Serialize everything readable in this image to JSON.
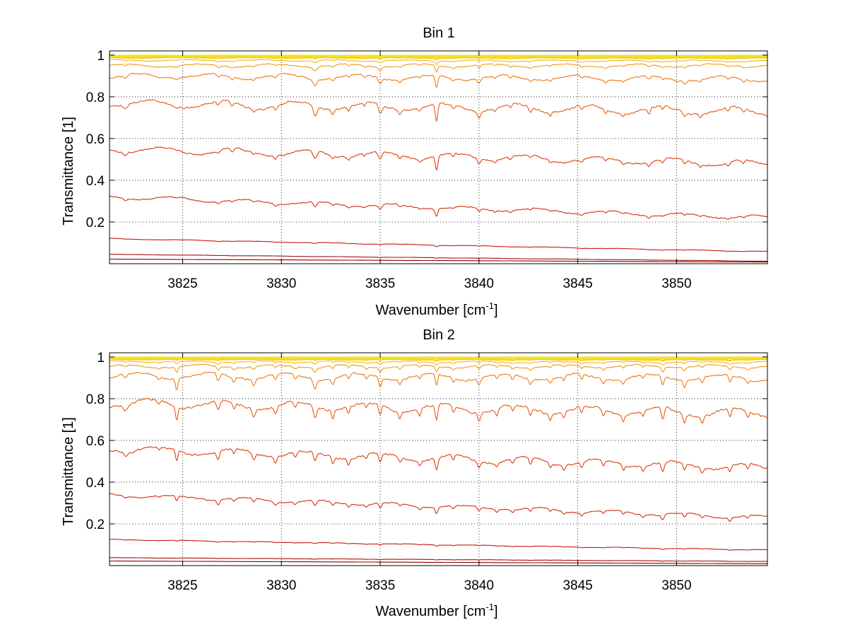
{
  "chart_data": [
    {
      "type": "line",
      "title": "Bin 1",
      "xlabel": "Wavenumber [cm",
      "xlabel_sup": "-1",
      "xlabel_end": "]",
      "ylabel": "Transmittance [1]",
      "xlim": [
        3821.3,
        3854.6
      ],
      "ylim": [
        0.0,
        1.02
      ],
      "xticks": [
        3825,
        3830,
        3835,
        3840,
        3845,
        3850
      ],
      "yticks": [
        0.2,
        0.4,
        0.6,
        0.8,
        1
      ],
      "ytick_labels": [
        "0.2",
        "0.4",
        "0.6",
        "0.8",
        "1"
      ],
      "grid": true,
      "legend": "none",
      "dips": [
        {
          "x": 3822.1,
          "w": 0.12,
          "s": 0.5
        },
        {
          "x": 3824.7,
          "w": 0.09,
          "s": 0.25
        },
        {
          "x": 3826.8,
          "w": 0.12,
          "s": 0.5
        },
        {
          "x": 3827.5,
          "w": 0.09,
          "s": 0.4
        },
        {
          "x": 3828.6,
          "w": 0.09,
          "s": 0.4
        },
        {
          "x": 3829.7,
          "w": 0.1,
          "s": 0.45
        },
        {
          "x": 3831.7,
          "w": 0.13,
          "s": 1.2
        },
        {
          "x": 3832.6,
          "w": 0.1,
          "s": 0.5
        },
        {
          "x": 3833.4,
          "w": 0.09,
          "s": 0.45
        },
        {
          "x": 3834.2,
          "w": 0.09,
          "s": 0.4
        },
        {
          "x": 3835.0,
          "w": 0.12,
          "s": 1.0
        },
        {
          "x": 3836.0,
          "w": 0.1,
          "s": 0.45
        },
        {
          "x": 3837.0,
          "w": 0.09,
          "s": 0.4
        },
        {
          "x": 3837.85,
          "w": 0.09,
          "s": 2.0
        },
        {
          "x": 3838.7,
          "w": 0.09,
          "s": 0.45
        },
        {
          "x": 3840.0,
          "w": 0.1,
          "s": 0.8
        },
        {
          "x": 3840.8,
          "w": 0.09,
          "s": 0.45
        },
        {
          "x": 3841.6,
          "w": 0.09,
          "s": 0.4
        },
        {
          "x": 3842.6,
          "w": 0.09,
          "s": 0.4
        },
        {
          "x": 3843.6,
          "w": 0.09,
          "s": 0.4
        },
        {
          "x": 3845.2,
          "w": 0.09,
          "s": 0.45
        },
        {
          "x": 3846.4,
          "w": 0.1,
          "s": 0.45
        },
        {
          "x": 3847.3,
          "w": 0.09,
          "s": 0.35
        },
        {
          "x": 3848.6,
          "w": 0.1,
          "s": 0.6
        },
        {
          "x": 3849.3,
          "w": 0.09,
          "s": 0.4
        },
        {
          "x": 3850.4,
          "w": 0.09,
          "s": 0.45
        },
        {
          "x": 3851.2,
          "w": 0.09,
          "s": 0.4
        },
        {
          "x": 3852.6,
          "w": 0.1,
          "s": 0.45
        },
        {
          "x": 3853.4,
          "w": 0.09,
          "s": 0.4
        }
      ],
      "series": [
        {
          "color": "#8b0000",
          "base_start": 0.022,
          "base_end": 0.008,
          "depth": 0.0
        },
        {
          "color": "#a50f0f",
          "base_start": 0.045,
          "base_end": 0.012,
          "depth": 0.002
        },
        {
          "color": "#c8180e",
          "base_start": 0.12,
          "base_end": 0.058,
          "depth": 0.006
        },
        {
          "color": "#d62d10",
          "base_start": 0.32,
          "base_end": 0.22,
          "depth": 0.035
        },
        {
          "color": "#dd3e10",
          "base_start": 0.55,
          "base_end": 0.48,
          "depth": 0.06
        },
        {
          "color": "#e65a12",
          "base_start": 0.77,
          "base_end": 0.73,
          "depth": 0.075
        },
        {
          "color": "#ec7a14",
          "base_start": 0.9,
          "base_end": 0.885,
          "depth": 0.05
        },
        {
          "color": "#f09a18",
          "base_start": 0.95,
          "base_end": 0.95,
          "depth": 0.03
        },
        {
          "color": "#f3b51c",
          "base_start": 0.975,
          "base_end": 0.972,
          "depth": 0.015
        },
        {
          "color": "#f5cc20",
          "base_start": 0.988,
          "base_end": 0.986,
          "depth": 0.006
        },
        {
          "color": "#f7dc22",
          "base_start": 0.994,
          "base_end": 0.993,
          "depth": 0.003
        },
        {
          "color": "#f0e61c",
          "base_start": 0.998,
          "base_end": 0.997,
          "depth": 0.001
        }
      ]
    },
    {
      "type": "line",
      "title": "Bin 2",
      "xlabel": "Wavenumber [cm",
      "xlabel_sup": "-1",
      "xlabel_end": "]",
      "ylabel": "Transmittance [1]",
      "xlim": [
        3821.3,
        3854.6
      ],
      "ylim": [
        0.0,
        1.02
      ],
      "xticks": [
        3825,
        3830,
        3835,
        3840,
        3845,
        3850
      ],
      "yticks": [
        0.2,
        0.4,
        0.6,
        0.8,
        1
      ],
      "ytick_labels": [
        "0.2",
        "0.4",
        "0.6",
        "0.8",
        "1"
      ],
      "grid": true,
      "legend": "none",
      "dips": [
        {
          "x": 3822.1,
          "w": 0.12,
          "s": 0.5
        },
        {
          "x": 3823.8,
          "w": 0.09,
          "s": 0.4
        },
        {
          "x": 3824.7,
          "w": 0.08,
          "s": 1.5
        },
        {
          "x": 3826.8,
          "w": 0.1,
          "s": 1.1
        },
        {
          "x": 3827.6,
          "w": 0.09,
          "s": 0.7
        },
        {
          "x": 3828.6,
          "w": 0.1,
          "s": 0.9
        },
        {
          "x": 3829.7,
          "w": 0.1,
          "s": 0.8
        },
        {
          "x": 3830.7,
          "w": 0.09,
          "s": 0.6
        },
        {
          "x": 3831.7,
          "w": 0.11,
          "s": 1.3
        },
        {
          "x": 3832.6,
          "w": 0.09,
          "s": 0.9
        },
        {
          "x": 3833.4,
          "w": 0.09,
          "s": 0.8
        },
        {
          "x": 3834.3,
          "w": 0.09,
          "s": 0.6
        },
        {
          "x": 3835.0,
          "w": 0.1,
          "s": 1.2
        },
        {
          "x": 3836.0,
          "w": 0.09,
          "s": 0.7
        },
        {
          "x": 3837.0,
          "w": 0.09,
          "s": 0.7
        },
        {
          "x": 3837.85,
          "w": 0.09,
          "s": 1.6
        },
        {
          "x": 3838.7,
          "w": 0.09,
          "s": 0.7
        },
        {
          "x": 3840.0,
          "w": 0.1,
          "s": 0.9
        },
        {
          "x": 3840.9,
          "w": 0.09,
          "s": 0.7
        },
        {
          "x": 3841.7,
          "w": 0.09,
          "s": 0.7
        },
        {
          "x": 3842.6,
          "w": 0.09,
          "s": 0.8
        },
        {
          "x": 3843.6,
          "w": 0.09,
          "s": 0.7
        },
        {
          "x": 3844.3,
          "w": 0.09,
          "s": 0.6
        },
        {
          "x": 3845.2,
          "w": 0.09,
          "s": 0.8
        },
        {
          "x": 3846.3,
          "w": 0.09,
          "s": 0.7
        },
        {
          "x": 3847.3,
          "w": 0.09,
          "s": 0.7
        },
        {
          "x": 3848.3,
          "w": 0.09,
          "s": 0.6
        },
        {
          "x": 3849.3,
          "w": 0.1,
          "s": 1.3
        },
        {
          "x": 3850.4,
          "w": 0.09,
          "s": 1.0
        },
        {
          "x": 3851.3,
          "w": 0.09,
          "s": 0.7
        },
        {
          "x": 3852.7,
          "w": 0.09,
          "s": 0.9
        },
        {
          "x": 3853.6,
          "w": 0.09,
          "s": 0.6
        }
      ],
      "series": [
        {
          "color": "#8b0000",
          "base_start": 0.022,
          "base_end": 0.009,
          "depth": 0.0
        },
        {
          "color": "#a50f0f",
          "base_start": 0.038,
          "base_end": 0.02,
          "depth": 0.002
        },
        {
          "color": "#c8180e",
          "base_start": 0.125,
          "base_end": 0.075,
          "depth": 0.006
        },
        {
          "color": "#d62d10",
          "base_start": 0.34,
          "base_end": 0.23,
          "depth": 0.035
        },
        {
          "color": "#dd3e10",
          "base_start": 0.56,
          "base_end": 0.47,
          "depth": 0.065
        },
        {
          "color": "#e65a12",
          "base_start": 0.78,
          "base_end": 0.73,
          "depth": 0.08
        },
        {
          "color": "#ec7a14",
          "base_start": 0.91,
          "base_end": 0.9,
          "depth": 0.06
        },
        {
          "color": "#f09a18",
          "base_start": 0.955,
          "base_end": 0.955,
          "depth": 0.03
        },
        {
          "color": "#f3b51c",
          "base_start": 0.978,
          "base_end": 0.975,
          "depth": 0.015
        },
        {
          "color": "#f5cc20",
          "base_start": 0.989,
          "base_end": 0.987,
          "depth": 0.006
        },
        {
          "color": "#f7dc22",
          "base_start": 0.995,
          "base_end": 0.994,
          "depth": 0.003
        },
        {
          "color": "#f0e61c",
          "base_start": 0.998,
          "base_end": 0.998,
          "depth": 0.001
        }
      ]
    }
  ]
}
